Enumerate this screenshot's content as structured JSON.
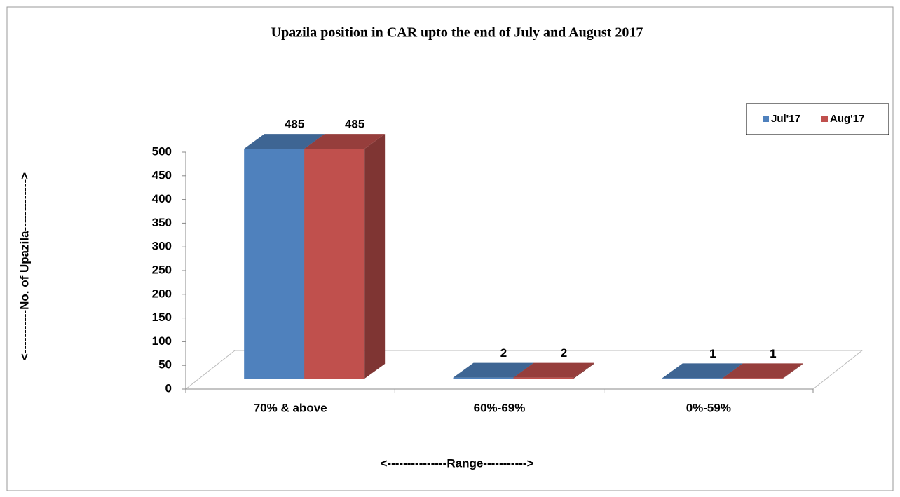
{
  "chart_data": {
    "type": "bar3d",
    "title": "Upazila position in CAR upto the end of  July and August 2017",
    "categories": [
      "70% & above",
      "60%-69%",
      "0%-59%"
    ],
    "series": [
      {
        "name": "Jul'17",
        "color": "#4F81BD",
        "values": [
          485,
          2,
          1
        ]
      },
      {
        "name": "Aug'17",
        "color": "#C0504D",
        "values": [
          485,
          2,
          1
        ]
      }
    ],
    "ylim": [
      0,
      500
    ],
    "yticks": [
      0,
      50,
      100,
      150,
      200,
      250,
      300,
      350,
      400,
      450,
      500
    ],
    "ylabel": "<-----------No. of Upazila------------->",
    "xlabel": "<---------------Range----------->",
    "legend": "top-right",
    "grid": false
  }
}
